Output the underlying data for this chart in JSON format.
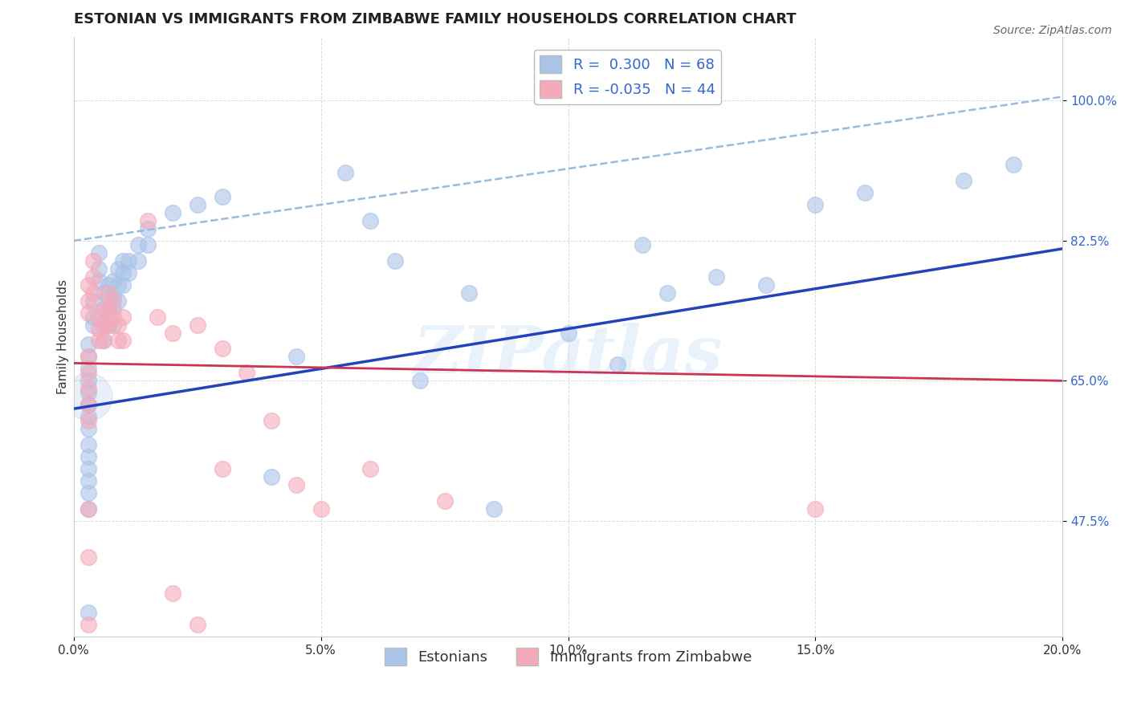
{
  "title": "ESTONIAN VS IMMIGRANTS FROM ZIMBABWE FAMILY HOUSEHOLDS CORRELATION CHART",
  "source": "Source: ZipAtlas.com",
  "ylabel": "Family Households",
  "xlim": [
    0.0,
    0.2
  ],
  "ylim": [
    0.33,
    1.08
  ],
  "xticks": [
    0.0,
    0.05,
    0.1,
    0.15,
    0.2
  ],
  "xticklabels": [
    "0.0%",
    "5.0%",
    "10.0%",
    "15.0%",
    "20.0%"
  ],
  "yticks": [
    0.475,
    0.65,
    0.825,
    1.0
  ],
  "yticklabels": [
    "47.5%",
    "65.0%",
    "82.5%",
    "100.0%"
  ],
  "blue_color": "#aac4e8",
  "pink_color": "#f5aabb",
  "blue_edge_color": "#7799cc",
  "pink_edge_color": "#dd8899",
  "blue_line_color": "#2244bb",
  "pink_line_color": "#cc3355",
  "dashed_line_color": "#99bbdd",
  "grid_color": "#cccccc",
  "background_color": "#ffffff",
  "title_fontsize": 13,
  "axis_label_fontsize": 11,
  "tick_fontsize": 11,
  "legend_fontsize": 13,
  "source_fontsize": 10,
  "blue_line_x": [
    0.0,
    0.2
  ],
  "blue_line_y": [
    0.615,
    0.815
  ],
  "pink_line_x": [
    0.0,
    0.2
  ],
  "pink_line_y": [
    0.672,
    0.65
  ],
  "dashed_line_x": [
    0.0,
    0.2
  ],
  "dashed_line_y": [
    0.825,
    1.005
  ],
  "blue_scatter": [
    [
      0.003,
      0.695
    ],
    [
      0.003,
      0.68
    ],
    [
      0.003,
      0.665
    ],
    [
      0.003,
      0.65
    ],
    [
      0.003,
      0.635
    ],
    [
      0.003,
      0.62
    ],
    [
      0.003,
      0.605
    ],
    [
      0.003,
      0.59
    ],
    [
      0.004,
      0.75
    ],
    [
      0.004,
      0.73
    ],
    [
      0.004,
      0.72
    ],
    [
      0.005,
      0.81
    ],
    [
      0.005,
      0.79
    ],
    [
      0.005,
      0.775
    ],
    [
      0.006,
      0.76
    ],
    [
      0.006,
      0.74
    ],
    [
      0.006,
      0.72
    ],
    [
      0.006,
      0.7
    ],
    [
      0.007,
      0.77
    ],
    [
      0.007,
      0.755
    ],
    [
      0.007,
      0.74
    ],
    [
      0.007,
      0.72
    ],
    [
      0.008,
      0.775
    ],
    [
      0.008,
      0.755
    ],
    [
      0.008,
      0.74
    ],
    [
      0.008,
      0.72
    ],
    [
      0.009,
      0.79
    ],
    [
      0.009,
      0.77
    ],
    [
      0.009,
      0.75
    ],
    [
      0.01,
      0.8
    ],
    [
      0.01,
      0.785
    ],
    [
      0.01,
      0.77
    ],
    [
      0.011,
      0.8
    ],
    [
      0.011,
      0.785
    ],
    [
      0.013,
      0.82
    ],
    [
      0.013,
      0.8
    ],
    [
      0.015,
      0.84
    ],
    [
      0.015,
      0.82
    ],
    [
      0.02,
      0.86
    ],
    [
      0.025,
      0.87
    ],
    [
      0.03,
      0.88
    ],
    [
      0.003,
      0.49
    ],
    [
      0.003,
      0.36
    ],
    [
      0.055,
      0.91
    ],
    [
      0.06,
      0.85
    ],
    [
      0.065,
      0.8
    ],
    [
      0.07,
      0.65
    ],
    [
      0.08,
      0.76
    ],
    [
      0.085,
      0.49
    ],
    [
      0.1,
      0.71
    ],
    [
      0.11,
      0.67
    ],
    [
      0.115,
      0.82
    ],
    [
      0.12,
      0.76
    ],
    [
      0.13,
      0.78
    ],
    [
      0.14,
      0.77
    ],
    [
      0.15,
      0.87
    ],
    [
      0.16,
      0.885
    ],
    [
      0.18,
      0.9
    ],
    [
      0.19,
      0.92
    ],
    [
      0.003,
      0.57
    ],
    [
      0.003,
      0.555
    ],
    [
      0.003,
      0.54
    ],
    [
      0.003,
      0.525
    ],
    [
      0.003,
      0.51
    ],
    [
      0.04,
      0.53
    ],
    [
      0.045,
      0.68
    ]
  ],
  "pink_scatter": [
    [
      0.003,
      0.77
    ],
    [
      0.003,
      0.75
    ],
    [
      0.003,
      0.735
    ],
    [
      0.004,
      0.8
    ],
    [
      0.004,
      0.78
    ],
    [
      0.004,
      0.76
    ],
    [
      0.005,
      0.73
    ],
    [
      0.005,
      0.715
    ],
    [
      0.005,
      0.7
    ],
    [
      0.006,
      0.74
    ],
    [
      0.006,
      0.72
    ],
    [
      0.006,
      0.7
    ],
    [
      0.007,
      0.76
    ],
    [
      0.007,
      0.74
    ],
    [
      0.007,
      0.72
    ],
    [
      0.008,
      0.75
    ],
    [
      0.008,
      0.73
    ],
    [
      0.009,
      0.72
    ],
    [
      0.009,
      0.7
    ],
    [
      0.01,
      0.73
    ],
    [
      0.01,
      0.7
    ],
    [
      0.003,
      0.68
    ],
    [
      0.003,
      0.66
    ],
    [
      0.003,
      0.64
    ],
    [
      0.003,
      0.62
    ],
    [
      0.003,
      0.6
    ],
    [
      0.015,
      0.85
    ],
    [
      0.017,
      0.73
    ],
    [
      0.02,
      0.71
    ],
    [
      0.025,
      0.72
    ],
    [
      0.03,
      0.69
    ],
    [
      0.035,
      0.66
    ],
    [
      0.03,
      0.54
    ],
    [
      0.04,
      0.6
    ],
    [
      0.045,
      0.52
    ],
    [
      0.05,
      0.49
    ],
    [
      0.06,
      0.54
    ],
    [
      0.075,
      0.5
    ],
    [
      0.003,
      0.49
    ],
    [
      0.003,
      0.43
    ],
    [
      0.02,
      0.385
    ],
    [
      0.025,
      0.345
    ],
    [
      0.15,
      0.49
    ],
    [
      0.003,
      0.345
    ]
  ],
  "large_blue_dot": [
    0.003,
    0.63
  ],
  "watermark_text": "ZIPatlas"
}
